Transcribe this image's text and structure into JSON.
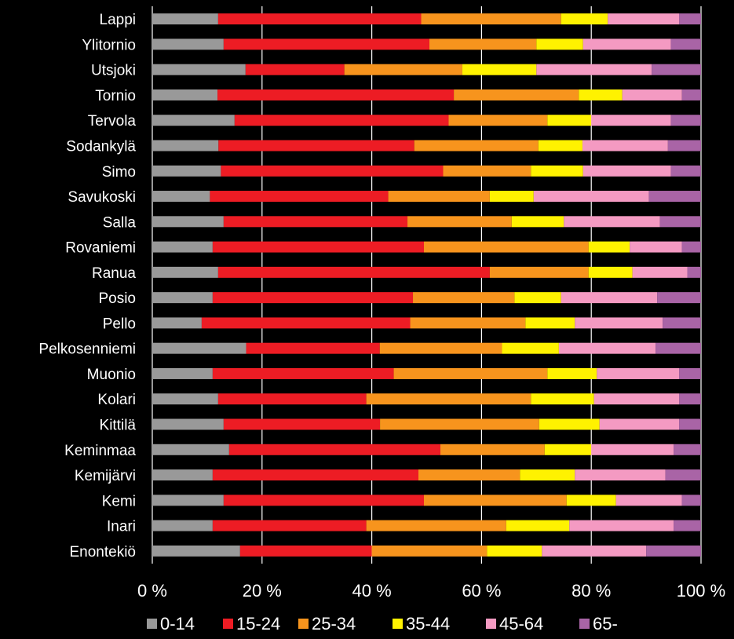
{
  "chart_data": {
    "type": "bar",
    "orientation": "horizontal",
    "stacked": "percent",
    "categories": [
      "Lappi",
      "Ylitornio",
      "Utsjoki",
      "Tornio",
      "Tervola",
      "Sodankylä",
      "Simo",
      "Savukoski",
      "Salla",
      "Rovaniemi",
      "Ranua",
      "Posio",
      "Pello",
      "Pelkosenniemi",
      "Muonio",
      "Kolari",
      "Kittilä",
      "Keminmaa",
      "Kemijärvi",
      "Kemi",
      "Inari",
      "Enontekiö"
    ],
    "series": [
      {
        "name": "0-14",
        "color": "#999999",
        "values": [
          12,
          13,
          17,
          12,
          15,
          12,
          12.5,
          10.5,
          13,
          11,
          12,
          11,
          9,
          16.5,
          11,
          12,
          13,
          14,
          11,
          13,
          11,
          16
        ]
      },
      {
        "name": "15-24",
        "color": "#ed1c24",
        "values": [
          37,
          37.5,
          18,
          43.5,
          39,
          35.5,
          40.5,
          32.5,
          33.5,
          38.5,
          49.5,
          36.5,
          38,
          23.5,
          33,
          27,
          28.5,
          38.5,
          37.5,
          36.5,
          28,
          24
        ]
      },
      {
        "name": "25-34",
        "color": "#f7941d",
        "values": [
          25.5,
          19.5,
          21.5,
          23,
          18,
          22.5,
          16,
          18.5,
          19,
          30,
          18,
          18.5,
          21,
          21.5,
          28,
          30,
          29,
          19,
          18.5,
          26,
          25.5,
          21
        ]
      },
      {
        "name": "35-44",
        "color": "#fff200",
        "values": [
          8.5,
          8.5,
          13.5,
          8,
          8,
          8,
          9.5,
          8,
          9.5,
          7.5,
          8,
          8.5,
          9,
          10,
          9,
          11.5,
          11,
          8.5,
          10,
          9,
          11.5,
          10
        ]
      },
      {
        "name": "45-64",
        "color": "#f49ac2",
        "values": [
          13,
          16,
          21,
          11,
          14.5,
          15.5,
          16,
          21,
          17.5,
          9.5,
          10,
          17.5,
          16,
          17,
          15,
          15.5,
          14.5,
          15,
          16.5,
          12,
          19,
          19
        ]
      },
      {
        "name": "65-",
        "color": "#a964a6",
        "values": [
          4,
          5.5,
          9,
          3.5,
          5.5,
          6,
          5.5,
          9.5,
          7.5,
          3.5,
          2.5,
          8,
          7,
          8,
          4,
          4,
          4,
          5,
          6.5,
          3.5,
          5,
          10
        ]
      }
    ],
    "x_axis": {
      "ticks": [
        "0 %",
        "20 %",
        "40 %",
        "60 %",
        "80 %",
        "100 %"
      ],
      "min": 0,
      "max": 100
    },
    "xlabel": "",
    "ylabel": "",
    "title": "",
    "grid": true,
    "legend_position": "bottom"
  }
}
